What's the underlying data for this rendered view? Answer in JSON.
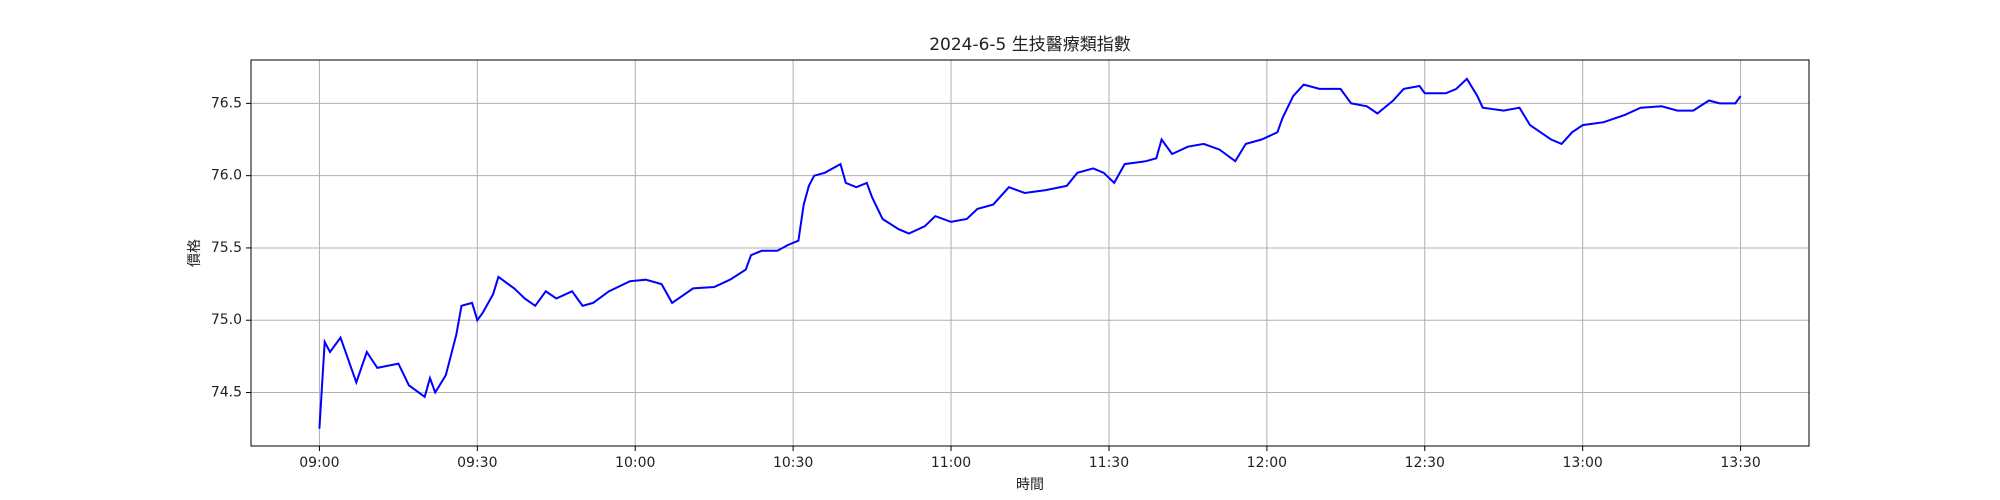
{
  "chart_data": {
    "type": "line",
    "title": "2024-6-5 生技醫療類指數",
    "x_label": "時間",
    "y_label": "價格",
    "x": [
      "09:00",
      "09:01",
      "09:02",
      "09:04",
      "09:07",
      "09:09",
      "09:11",
      "09:15",
      "09:17",
      "09:20",
      "09:21",
      "09:22",
      "09:24",
      "09:26",
      "09:27",
      "09:29",
      "09:30",
      "09:31",
      "09:33",
      "09:34",
      "09:37",
      "09:39",
      "09:41",
      "09:43",
      "09:45",
      "09:48",
      "09:50",
      "09:52",
      "09:55",
      "09:59",
      "10:02",
      "10:05",
      "10:07",
      "10:11",
      "10:15",
      "10:18",
      "10:21",
      "10:22",
      "10:24",
      "10:27",
      "10:29",
      "10:31",
      "10:32",
      "10:33",
      "10:34",
      "10:36",
      "10:39",
      "10:40",
      "10:42",
      "10:44",
      "10:45",
      "10:47",
      "10:50",
      "10:52",
      "10:55",
      "10:57",
      "11:00",
      "11:03",
      "11:05",
      "11:08",
      "11:11",
      "11:14",
      "11:18",
      "11:22",
      "11:24",
      "11:27",
      "11:29",
      "11:31",
      "11:33",
      "11:37",
      "11:39",
      "11:40",
      "11:42",
      "11:45",
      "11:48",
      "11:51",
      "11:54",
      "11:56",
      "11:59",
      "12:02",
      "12:03",
      "12:05",
      "12:07",
      "12:10",
      "12:14",
      "12:16",
      "12:19",
      "12:21",
      "12:24",
      "12:26",
      "12:29",
      "12:30",
      "12:34",
      "12:36",
      "12:38",
      "12:40",
      "12:41",
      "12:45",
      "12:48",
      "12:50",
      "12:52",
      "12:54",
      "12:56",
      "12:58",
      "13:00",
      "13:04",
      "13:08",
      "13:11",
      "13:15",
      "13:18",
      "13:21",
      "13:24",
      "13:26",
      "13:29",
      "13:30"
    ],
    "series": [
      {
        "name": "價格",
        "color": "#0000ff",
        "values": [
          74.25,
          74.85,
          74.78,
          74.88,
          74.57,
          74.78,
          74.67,
          74.7,
          74.55,
          74.47,
          74.6,
          74.5,
          74.62,
          74.9,
          75.1,
          75.12,
          75.0,
          75.05,
          75.18,
          75.3,
          75.22,
          75.15,
          75.1,
          75.2,
          75.15,
          75.2,
          75.1,
          75.12,
          75.2,
          75.27,
          75.28,
          75.25,
          75.12,
          75.22,
          75.23,
          75.28,
          75.35,
          75.45,
          75.48,
          75.48,
          75.52,
          75.55,
          75.8,
          75.93,
          76.0,
          76.02,
          76.08,
          75.95,
          75.92,
          75.95,
          75.85,
          75.7,
          75.63,
          75.6,
          75.65,
          75.72,
          75.68,
          75.7,
          75.77,
          75.8,
          75.92,
          75.88,
          75.9,
          75.93,
          76.02,
          76.05,
          76.02,
          75.95,
          76.08,
          76.1,
          76.12,
          76.25,
          76.15,
          76.2,
          76.22,
          76.18,
          76.1,
          76.22,
          76.25,
          76.3,
          76.4,
          76.55,
          76.63,
          76.6,
          76.6,
          76.5,
          76.48,
          76.43,
          76.52,
          76.6,
          76.62,
          76.57,
          76.57,
          76.6,
          76.67,
          76.55,
          76.47,
          76.45,
          76.47,
          76.35,
          76.3,
          76.25,
          76.22,
          76.3,
          76.35,
          76.37,
          76.42,
          76.47,
          76.48,
          76.45,
          76.45,
          76.52,
          76.5,
          76.5,
          76.55
        ]
      }
    ],
    "xlim": [
      "08:47",
      "13:43"
    ],
    "xticks": [
      "09:00",
      "09:30",
      "10:00",
      "10:30",
      "11:00",
      "11:30",
      "12:00",
      "12:30",
      "13:00",
      "13:30"
    ],
    "ylim": [
      74.13,
      76.8
    ],
    "yticks": [
      74.5,
      {
        "value": 75,
        "label": "75.0"
      },
      75.5,
      {
        "value": 76,
        "label": "76.0"
      },
      76.5
    ],
    "grid": true
  }
}
